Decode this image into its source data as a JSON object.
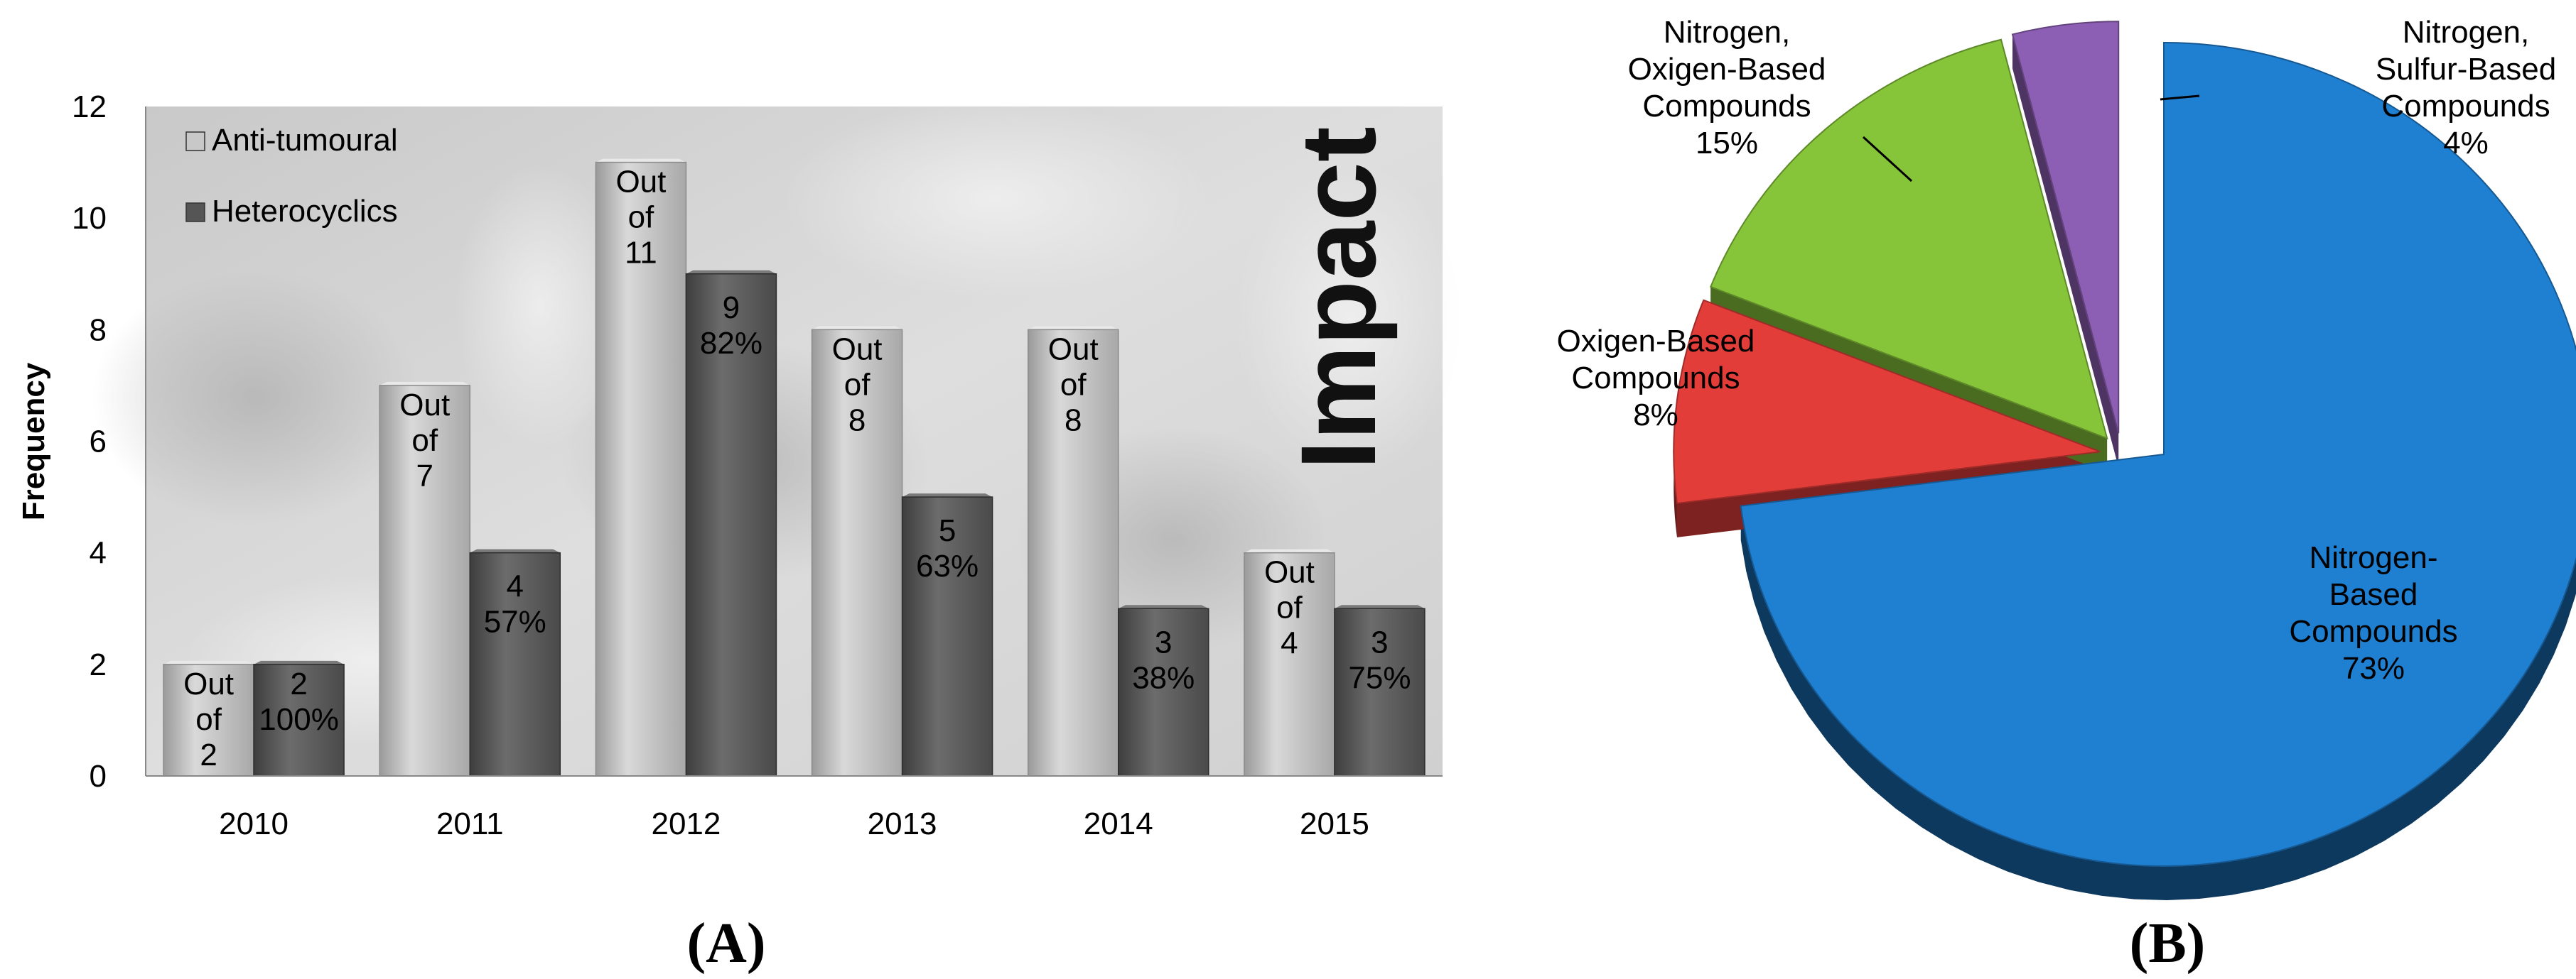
{
  "chart_data": [
    {
      "panel_label": "(A)",
      "type": "bar",
      "ylabel": "Frequency",
      "ylim": [
        0,
        12
      ],
      "yticks": [
        "0",
        "2",
        "4",
        "6",
        "8",
        "10",
        "12"
      ],
      "watermark_text": "Impact",
      "categories": [
        "2010",
        "2011",
        "2012",
        "2013",
        "2014",
        "2015"
      ],
      "series": [
        {
          "name": "Anti-tumoural",
          "color": "#bdbdbd",
          "values": [
            2,
            7,
            11,
            8,
            8,
            4
          ],
          "labels": [
            [
              "Out",
              "of",
              "2"
            ],
            [
              "Out",
              "of",
              "7"
            ],
            [
              "Out",
              "of",
              "11"
            ],
            [
              "Out",
              "of",
              "8"
            ],
            [
              "Out",
              "of",
              "8"
            ],
            [
              "Out",
              "of",
              "4"
            ]
          ]
        },
        {
          "name": "Heterocyclics",
          "color": "#5b5b5b",
          "values": [
            2,
            4,
            9,
            5,
            3,
            3
          ],
          "labels": [
            [
              "2",
              "100%"
            ],
            [
              "4",
              "57%"
            ],
            [
              "9",
              "82%"
            ],
            [
              "5",
              "63%"
            ],
            [
              "3",
              "38%"
            ],
            [
              "3",
              "75%"
            ]
          ]
        }
      ],
      "legend_position": "top-left",
      "grid": false
    },
    {
      "panel_label": "(B)",
      "type": "pie",
      "slices": [
        {
          "label": [
            "Nitrogen-",
            "Based",
            "Compounds"
          ],
          "percent_label": "73%",
          "value": 73,
          "color": "#1f7fd0"
        },
        {
          "label": [
            "Oxigen-Based",
            "Compounds"
          ],
          "percent_label": "8%",
          "value": 8,
          "color": "#e33d3a"
        },
        {
          "label": [
            "Nitrogen,",
            "Oxigen-Based",
            "Compounds"
          ],
          "percent_label": "15%",
          "value": 15,
          "color": "#86c43a"
        },
        {
          "label": [
            "Nitrogen,",
            "Sulfur-Based",
            "Compounds"
          ],
          "percent_label": "4%",
          "value": 4,
          "color": "#8d5fb4"
        }
      ],
      "style": "3d-exploded"
    }
  ]
}
